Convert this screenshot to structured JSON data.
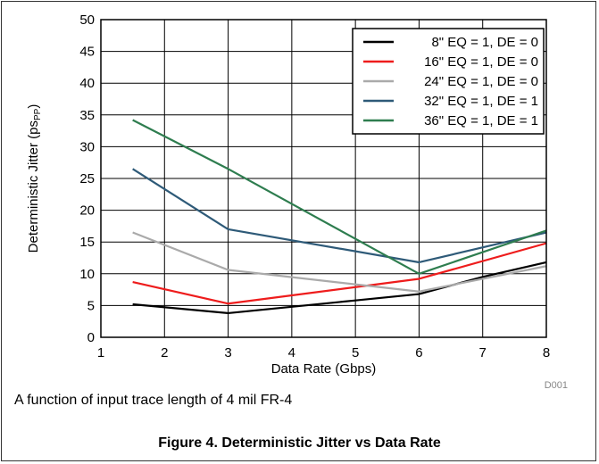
{
  "chart_data": {
    "type": "line",
    "xlabel": "Data Rate (Gbps)",
    "ylabel": "Deterministic Jitter (ps",
    "ylabel_sub": "PP",
    "ylabel_close": ")",
    "xlim": [
      1,
      8
    ],
    "ylim": [
      0,
      50
    ],
    "x_ticks": [
      1,
      2,
      3,
      4,
      5,
      6,
      7,
      8
    ],
    "y_ticks": [
      0,
      5,
      10,
      15,
      20,
      25,
      30,
      35,
      40,
      45,
      50
    ],
    "grid": true,
    "legend_position": "top-right",
    "code": "D001",
    "series": [
      {
        "name": "8\" EQ = 1, DE = 0",
        "color": "#000000",
        "x": [
          1.5,
          3,
          4,
          5,
          6,
          7,
          8
        ],
        "y": [
          5.2,
          3.8,
          4.8,
          5.8,
          6.8,
          9.5,
          11.8
        ]
      },
      {
        "name": "16\" EQ = 1, DE = 0",
        "color": "#ee1c1c",
        "x": [
          1.5,
          3,
          6,
          8
        ],
        "y": [
          8.7,
          5.3,
          9.2,
          14.8
        ]
      },
      {
        "name": "24\" EQ = 1, DE = 0",
        "color": "#aaaaaa",
        "x": [
          1.5,
          3,
          6,
          8
        ],
        "y": [
          16.5,
          10.6,
          7.2,
          11.2
        ]
      },
      {
        "name": "32\" EQ = 1, DE = 1",
        "color": "#2e5a78",
        "x": [
          1.5,
          3,
          6,
          8
        ],
        "y": [
          26.5,
          17.0,
          11.8,
          16.5
        ]
      },
      {
        "name": "36\" EQ = 1, DE = 1",
        "color": "#2e7d4f",
        "x": [
          1.5,
          3,
          6,
          8
        ],
        "y": [
          34.2,
          26.5,
          10.0,
          16.8
        ]
      }
    ]
  },
  "note": "A function of input trace length of 4 mil FR-4",
  "figure_title": "Figure 4. Deterministic Jitter vs Data Rate"
}
